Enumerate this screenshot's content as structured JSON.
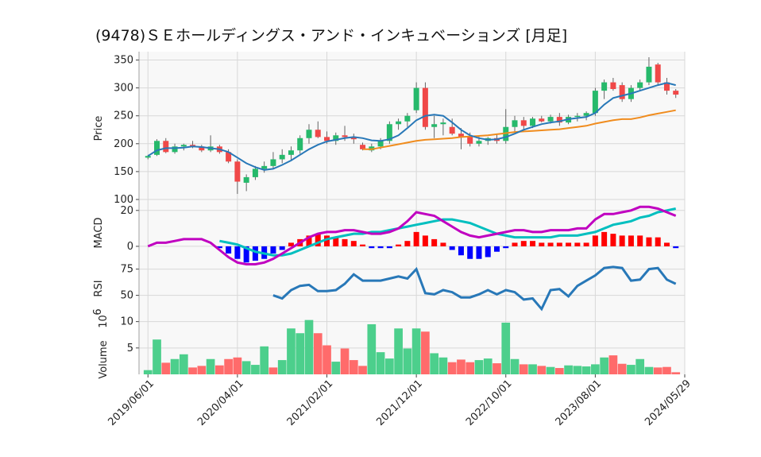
{
  "title": "(9478)ＳＥホールディングス・アンド・インキュベーションズ [月足]",
  "colors": {
    "up": "#26b96b",
    "down": "#f04848",
    "ma_short": "#2878b8",
    "ma_long": "#f08c1e",
    "macd": "#c000c0",
    "signal": "#00bfbf",
    "hist_pos": "#ff0000",
    "hist_neg": "#0000ff",
    "rsi": "#2878b8",
    "vol_up": "#4ccf8c",
    "vol_down": "#ff6b6b",
    "grid": "#d8d8d8",
    "panel_bg": "#f8f8f8"
  },
  "chart_data": {
    "type": "candlestick",
    "x_ticks": [
      "2019/06/01",
      "2020/04/01",
      "2021/02/01",
      "2021/12/01",
      "2022/10/01",
      "2023/08/01",
      "2024/05/29"
    ],
    "x_tick_index": [
      0,
      10,
      20,
      30,
      40,
      50,
      60
    ],
    "price": {
      "ylabel": "Price",
      "yticks": [
        100,
        150,
        200,
        250,
        300,
        350
      ],
      "ylim": [
        90,
        365
      ],
      "ohlc": [
        [
          175,
          180,
          172,
          178
        ],
        [
          180,
          208,
          178,
          205
        ],
        [
          205,
          210,
          183,
          185
        ],
        [
          185,
          200,
          182,
          195
        ],
        [
          195,
          200,
          188,
          198
        ],
        [
          198,
          205,
          192,
          195
        ],
        [
          195,
          198,
          185,
          188
        ],
        [
          188,
          215,
          185,
          195
        ],
        [
          195,
          198,
          182,
          185
        ],
        [
          185,
          190,
          165,
          168
        ],
        [
          168,
          172,
          110,
          132
        ],
        [
          130,
          145,
          115,
          140
        ],
        [
          140,
          160,
          135,
          155
        ],
        [
          155,
          168,
          148,
          160
        ],
        [
          160,
          185,
          155,
          172
        ],
        [
          172,
          190,
          165,
          180
        ],
        [
          180,
          195,
          170,
          188
        ],
        [
          188,
          215,
          182,
          210
        ],
        [
          210,
          235,
          200,
          225
        ],
        [
          225,
          240,
          210,
          212
        ],
        [
          212,
          222,
          200,
          205
        ],
        [
          205,
          220,
          198,
          215
        ],
        [
          215,
          232,
          205,
          212
        ],
        [
          212,
          218,
          200,
          208
        ],
        [
          198,
          202,
          188,
          190
        ],
        [
          188,
          200,
          185,
          195
        ],
        [
          195,
          210,
          190,
          205
        ],
        [
          205,
          240,
          200,
          235
        ],
        [
          235,
          245,
          225,
          240
        ],
        [
          240,
          255,
          230,
          250
        ],
        [
          260,
          310,
          255,
          300
        ],
        [
          300,
          310,
          225,
          230
        ],
        [
          230,
          250,
          210,
          235
        ],
        [
          235,
          245,
          215,
          238
        ],
        [
          230,
          245,
          215,
          218
        ],
        [
          218,
          228,
          190,
          212
        ],
        [
          212,
          220,
          195,
          200
        ],
        [
          200,
          215,
          195,
          205
        ],
        [
          205,
          212,
          198,
          210
        ],
        [
          210,
          218,
          200,
          205
        ],
        [
          205,
          262,
          200,
          230
        ],
        [
          230,
          250,
          222,
          242
        ],
        [
          242,
          248,
          225,
          232
        ],
        [
          232,
          248,
          228,
          245
        ],
        [
          245,
          250,
          238,
          240
        ],
        [
          240,
          252,
          236,
          248
        ],
        [
          248,
          255,
          232,
          238
        ],
        [
          238,
          252,
          235,
          248
        ],
        [
          248,
          255,
          240,
          250
        ],
        [
          250,
          258,
          242,
          255
        ],
        [
          255,
          300,
          250,
          295
        ],
        [
          295,
          315,
          280,
          310
        ],
        [
          310,
          318,
          295,
          298
        ],
        [
          305,
          310,
          275,
          280
        ],
        [
          280,
          305,
          275,
          300
        ],
        [
          300,
          315,
          295,
          310
        ],
        [
          310,
          355,
          305,
          338
        ],
        [
          342,
          345,
          305,
          310
        ],
        [
          310,
          318,
          288,
          295
        ],
        [
          295,
          298,
          282,
          288
        ]
      ],
      "ma_short": [
        178,
        188,
        192,
        192,
        193,
        195,
        194,
        192,
        190,
        185,
        175,
        165,
        158,
        153,
        155,
        162,
        170,
        180,
        190,
        198,
        204,
        207,
        210,
        212,
        210,
        206,
        205,
        208,
        215,
        228,
        242,
        250,
        252,
        250,
        238,
        225,
        215,
        210,
        207,
        208,
        212,
        218,
        225,
        230,
        235,
        238,
        240,
        244,
        246,
        248,
        255,
        270,
        282,
        286,
        290,
        295,
        300,
        305,
        309,
        305
      ],
      "ma_long": [
        null,
        null,
        null,
        null,
        null,
        null,
        null,
        null,
        null,
        null,
        null,
        null,
        null,
        null,
        null,
        null,
        null,
        null,
        null,
        null,
        null,
        null,
        null,
        null,
        190,
        190,
        193,
        196,
        199,
        202,
        205,
        207,
        208,
        209,
        210,
        212,
        213,
        214,
        215,
        217,
        219,
        221,
        222,
        223,
        224,
        225,
        226,
        228,
        230,
        232,
        236,
        239,
        242,
        244,
        244,
        247,
        251,
        254,
        257,
        260
      ]
    },
    "macd": {
      "ylabel": "MACD",
      "yticks": [
        0,
        20
      ],
      "ylim": [
        -8,
        23
      ],
      "macd": [
        0,
        2,
        2,
        3,
        4,
        4,
        4,
        2,
        -2,
        -6,
        -9,
        -10,
        -10,
        -9,
        -7,
        -4,
        -1,
        2,
        5,
        7,
        8,
        8,
        9,
        9,
        8,
        7,
        7,
        8,
        10,
        14,
        19,
        18,
        17,
        14,
        11,
        8,
        6,
        5,
        6,
        7,
        8,
        9,
        9,
        8,
        8,
        9,
        9,
        9,
        10,
        10,
        15,
        18,
        18,
        19,
        20,
        22,
        22,
        21,
        19,
        17
      ],
      "signal": [
        null,
        null,
        null,
        null,
        null,
        null,
        null,
        null,
        3,
        2,
        1,
        -1,
        -3,
        -4,
        -5,
        -5,
        -4,
        -2,
        0,
        2,
        4,
        5,
        6,
        7,
        7,
        8,
        8,
        9,
        10,
        11,
        12,
        13,
        14,
        15,
        15,
        14,
        13,
        11,
        9,
        7,
        6,
        5,
        5,
        5,
        5,
        5,
        6,
        6,
        6,
        7,
        8,
        10,
        12,
        13,
        14,
        16,
        17,
        19,
        20,
        21
      ],
      "hist": [
        null,
        null,
        null,
        null,
        null,
        null,
        null,
        null,
        -1,
        -4,
        -7,
        -9,
        -8,
        -7,
        -4,
        -2,
        2,
        4,
        6,
        7,
        6,
        5,
        4,
        3,
        1,
        -1,
        -1,
        -1,
        1,
        3,
        8,
        6,
        4,
        2,
        -2,
        -5,
        -7,
        -7,
        -6,
        -3,
        -1,
        2,
        3,
        3,
        2,
        2,
        2,
        2,
        2,
        2,
        6,
        8,
        7,
        6,
        6,
        6,
        5,
        5,
        2,
        -1
      ]
    },
    "rsi": {
      "ylabel": "RSI",
      "yticks": [
        50,
        75
      ],
      "ylim": [
        30,
        83
      ],
      "values": [
        null,
        null,
        null,
        null,
        null,
        null,
        null,
        null,
        null,
        null,
        null,
        null,
        null,
        null,
        50,
        47,
        55,
        59,
        60,
        54,
        54,
        55,
        61,
        70,
        64,
        64,
        64,
        66,
        68,
        66,
        75,
        52,
        51,
        55,
        53,
        48,
        48,
        51,
        55,
        51,
        55,
        53,
        46,
        47,
        37,
        55,
        56,
        49,
        59,
        64,
        69,
        76,
        77,
        76,
        64,
        65,
        75,
        76,
        65,
        61
      ]
    },
    "volume": {
      "ylabel": "Volume",
      "scale_label": "10",
      "scale_exponent": "6",
      "yticks": [
        5,
        10
      ],
      "ylim": [
        0,
        11
      ],
      "values": [
        0.8,
        6.6,
        2.2,
        2.9,
        3.8,
        1.3,
        1.6,
        2.9,
        1.7,
        2.9,
        3.2,
        2.5,
        1.8,
        5.3,
        1.3,
        2.7,
        8.7,
        7.8,
        10.3,
        7.8,
        5.5,
        2.4,
        4.9,
        2.7,
        1.6,
        9.5,
        4.2,
        3.0,
        8.7,
        4.9,
        8.7,
        8.1,
        4.0,
        3.2,
        2.3,
        2.8,
        2.3,
        2.7,
        3.0,
        2.1,
        9.8,
        2.9,
        1.9,
        1.9,
        1.6,
        1.4,
        1.2,
        1.7,
        1.6,
        1.5,
        1.9,
        3.2,
        3.6,
        2.0,
        1.8,
        2.9,
        1.4,
        1.3,
        1.4,
        0.4
      ],
      "up": [
        true,
        true,
        false,
        true,
        true,
        false,
        false,
        true,
        false,
        false,
        false,
        true,
        true,
        true,
        false,
        true,
        true,
        true,
        true,
        false,
        false,
        true,
        false,
        false,
        false,
        true,
        true,
        true,
        true,
        true,
        true,
        false,
        true,
        true,
        false,
        false,
        false,
        true,
        true,
        false,
        true,
        true,
        false,
        true,
        false,
        true,
        false,
        true,
        true,
        true,
        true,
        true,
        false,
        false,
        true,
        true,
        true,
        false,
        false,
        false
      ]
    }
  }
}
